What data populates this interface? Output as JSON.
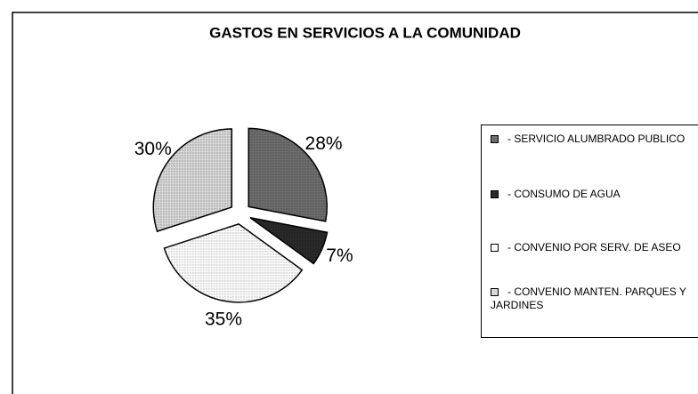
{
  "chart_data": {
    "type": "pie",
    "title": "GASTOS EN SERVICIOS A LA COMUNIDAD",
    "categories": [
      "- SERVICIO ALUMBRADO PUBLICO",
      "- CONSUMO DE AGUA",
      "- CONVENIO POR SERV. DE ASEO",
      "- CONVENIO MANTEN. PARQUES Y JARDINES"
    ],
    "values": [
      28,
      7,
      35,
      30
    ],
    "value_labels": [
      "28%",
      "7%",
      "35%",
      "30%"
    ],
    "colors": [
      "#6e6e6e",
      "#2a2a2a",
      "#ffffff",
      "#d8d8d8"
    ],
    "legend": "right"
  }
}
